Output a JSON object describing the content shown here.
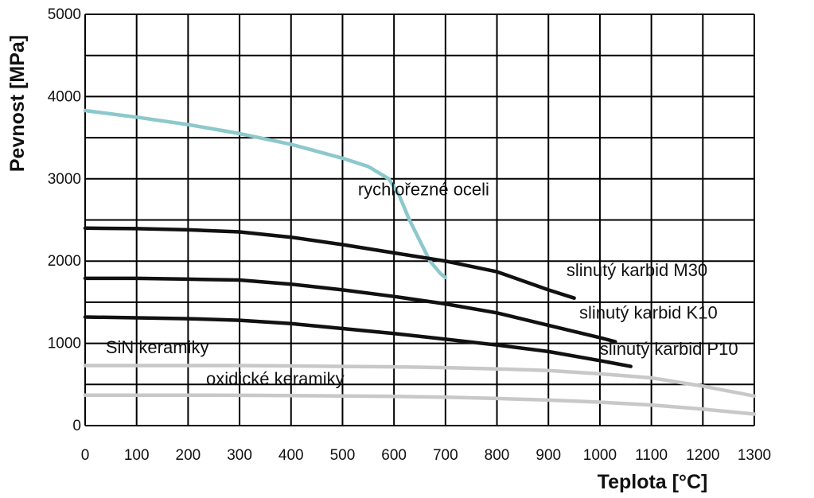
{
  "chart_data": {
    "type": "line",
    "xlabel": "Teplota [°C]",
    "ylabel": "Pevnost [MPa]",
    "xlim": [
      0,
      1300
    ],
    "ylim": [
      0,
      5000
    ],
    "xticks": [
      0,
      100,
      200,
      300,
      400,
      500,
      600,
      700,
      800,
      900,
      1000,
      1100,
      1200,
      1300
    ],
    "yticks": [
      0,
      1000,
      2000,
      3000,
      4000,
      5000
    ],
    "grid": true,
    "series": [
      {
        "name": "rychlořezné oceli",
        "color": "#8cc8cc",
        "x": [
          0,
          100,
          200,
          300,
          400,
          500,
          550,
          590,
          610,
          630,
          650,
          670,
          690,
          700
        ],
        "y": [
          3830,
          3750,
          3660,
          3550,
          3420,
          3250,
          3150,
          3000,
          2800,
          2500,
          2250,
          2000,
          1850,
          1800
        ]
      },
      {
        "name": "slinutý karbid M30",
        "color": "#111111",
        "x": [
          0,
          100,
          200,
          300,
          400,
          500,
          600,
          700,
          800,
          900,
          950
        ],
        "y": [
          2400,
          2395,
          2380,
          2355,
          2290,
          2200,
          2100,
          2000,
          1870,
          1650,
          1550
        ]
      },
      {
        "name": "slinutý karbid K10",
        "color": "#111111",
        "x": [
          0,
          100,
          200,
          300,
          400,
          500,
          600,
          700,
          800,
          900,
          1000,
          1030
        ],
        "y": [
          1790,
          1790,
          1780,
          1770,
          1720,
          1650,
          1570,
          1480,
          1370,
          1220,
          1070,
          1020
        ]
      },
      {
        "name": "slinutý karbid P10",
        "color": "#111111",
        "x": [
          0,
          100,
          200,
          300,
          400,
          500,
          600,
          700,
          800,
          900,
          1000,
          1060
        ],
        "y": [
          1320,
          1310,
          1300,
          1280,
          1240,
          1180,
          1120,
          1050,
          980,
          900,
          790,
          720
        ]
      },
      {
        "name": "SiN keramiky",
        "color": "#c8c8c8",
        "x": [
          0,
          100,
          200,
          300,
          400,
          500,
          600,
          700,
          800,
          900,
          1000,
          1100,
          1200,
          1300
        ],
        "y": [
          730,
          730,
          730,
          730,
          725,
          720,
          715,
          705,
          690,
          670,
          630,
          580,
          480,
          360
        ]
      },
      {
        "name": "oxidické keramiky",
        "color": "#c8c8c8",
        "x": [
          0,
          100,
          200,
          300,
          400,
          500,
          600,
          700,
          800,
          900,
          1000,
          1100,
          1200,
          1300
        ],
        "y": [
          370,
          370,
          370,
          368,
          365,
          360,
          355,
          345,
          330,
          310,
          285,
          250,
          200,
          140
        ]
      }
    ],
    "annotations": [
      {
        "text": "rychlořezné oceli",
        "x": 530,
        "y": 2800
      },
      {
        "text": "slinutý karbid M30",
        "x": 935,
        "y": 1820
      },
      {
        "text": "slinutý karbid K10",
        "x": 960,
        "y": 1300
      },
      {
        "text": "slinutý karbid P10",
        "x": 1000,
        "y": 860
      },
      {
        "text": "SiN keramiky",
        "x": 40,
        "y": 880
      },
      {
        "text": "oxidické keramiky",
        "x": 235,
        "y": 500
      }
    ]
  }
}
